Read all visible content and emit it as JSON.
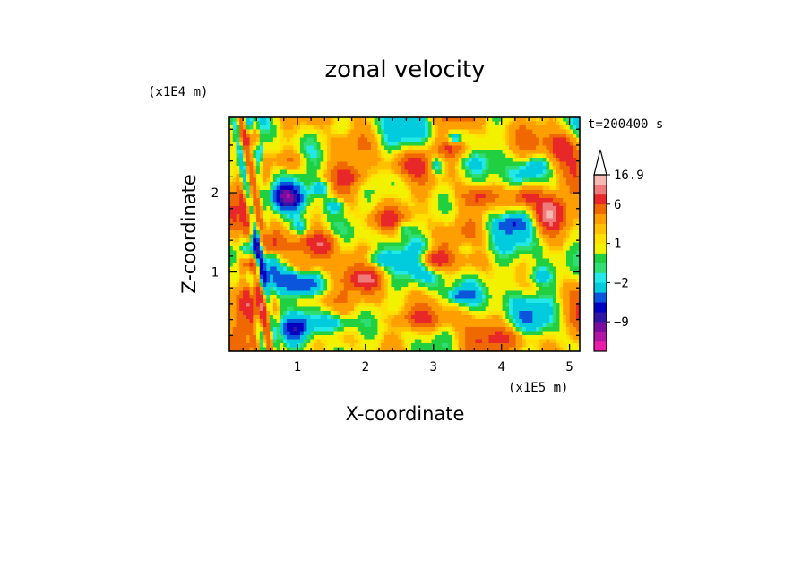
{
  "chart_data": {
    "type": "heatmap",
    "title": "zonal velocity",
    "xlabel": "X-coordinate",
    "ylabel": "Z-coordinate",
    "x_unit": "(x1E5 m)",
    "y_unit": "(x1E4 m)",
    "time_label": "t=200400 s",
    "xlim": [
      0,
      5.15
    ],
    "ylim": [
      0,
      2.95
    ],
    "x_ticks": [
      1,
      2,
      3,
      4,
      5
    ],
    "y_ticks": [
      1,
      2
    ],
    "colorbar": {
      "levels": [
        -12,
        -10.5,
        -9,
        -7.5,
        -6,
        -4,
        -2,
        -1.5,
        -1,
        0,
        1,
        1.5,
        2,
        4,
        6,
        9,
        12,
        16.9
      ],
      "colors": [
        "#ea1ca8",
        "#b214a4",
        "#7a0da0",
        "#3016a6",
        "#0000c0",
        "#0a55dc",
        "#00ccdd",
        "#22e8e8",
        "#2ede72",
        "#20d040",
        "#f2f200",
        "#ffe000",
        "#ffc000",
        "#ff9e00",
        "#f06800",
        "#e82828",
        "#ef7a7a",
        "#f6b8b2"
      ],
      "labels": [
        "16.9",
        "6",
        "1",
        "−2",
        "−9"
      ],
      "label_values": [
        16.9,
        6,
        1,
        -2,
        -9
      ],
      "extend": "max"
    },
    "grid": false,
    "legend": "colorbar-right"
  }
}
